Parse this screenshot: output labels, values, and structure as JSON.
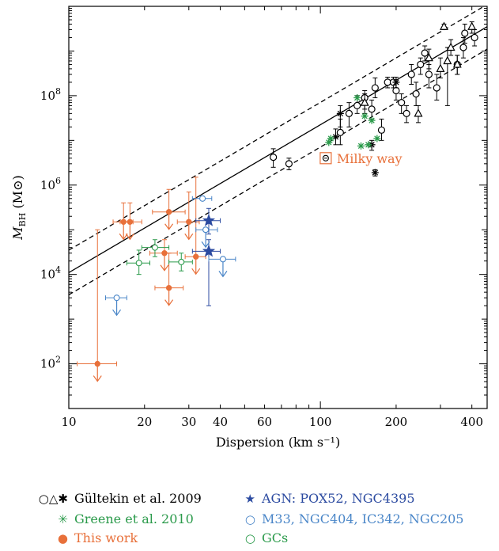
{
  "chart_data": {
    "type": "scatter",
    "xlabel": "Dispersion (km s⁻¹)",
    "ylabel_main": "M",
    "ylabel_sub": "BH",
    "ylabel_unit": "(M⊙)",
    "x_scale": "log",
    "y_scale": "log",
    "xlim": [
      10,
      460
    ],
    "ylim": [
      10,
      10000000000
    ],
    "x_ticks": [
      {
        "value": 10,
        "label": "10"
      },
      {
        "value": 20,
        "label": "20"
      },
      {
        "value": 30,
        "label": "30"
      },
      {
        "value": 40,
        "label": "40"
      },
      {
        "value": 60,
        "label": "60"
      },
      {
        "value": 100,
        "label": "100"
      },
      {
        "value": 200,
        "label": "200"
      },
      {
        "value": 400,
        "label": "400"
      }
    ],
    "y_ticks": [
      {
        "value": 100,
        "base": "10",
        "exp": "2"
      },
      {
        "value": 10000,
        "base": "10",
        "exp": "4"
      },
      {
        "value": 1000000,
        "base": "10",
        "exp": "6"
      },
      {
        "value": 100000000,
        "base": "10",
        "exp": "8"
      }
    ],
    "fit_lines": [
      {
        "style": "solid",
        "points": [
          [
            10,
            11000
          ],
          [
            460,
            3500000000
          ]
        ]
      },
      {
        "style": "dashed",
        "points": [
          [
            10,
            35000
          ],
          [
            460,
            11000000000
          ]
        ]
      },
      {
        "style": "dashed",
        "points": [
          [
            10,
            3500
          ],
          [
            460,
            1100000000
          ]
        ]
      }
    ],
    "annotation": {
      "text": "Milky way",
      "x": 105,
      "y": 4000000,
      "color": "#e8703a"
    },
    "series": [
      {
        "name": "Gültekin et al. 2009",
        "color": "#000000",
        "marker": "circle-open",
        "points": [
          {
            "x": 65,
            "y": 4200000,
            "ylo": 2500000,
            "yhi": 6500000
          },
          {
            "x": 75,
            "y": 3000000,
            "ylo": 2200000,
            "yhi": 4000000
          },
          {
            "x": 120,
            "y": 15000000,
            "ylo": 8000000,
            "yhi": 30000000
          },
          {
            "x": 130,
            "y": 40000000,
            "ylo": 20000000,
            "yhi": 70000000
          },
          {
            "x": 140,
            "y": 60000000,
            "ylo": 40000000,
            "yhi": 100000000
          },
          {
            "x": 150,
            "y": 90000000,
            "ylo": 50000000,
            "yhi": 130000000
          },
          {
            "x": 160,
            "y": 50000000,
            "ylo": 30000000,
            "yhi": 80000000
          },
          {
            "x": 165,
            "y": 150000000,
            "ylo": 90000000,
            "yhi": 250000000
          },
          {
            "x": 175,
            "y": 17000000,
            "ylo": 10000000,
            "yhi": 30000000
          },
          {
            "x": 185,
            "y": 200000000,
            "ylo": 150000000,
            "yhi": 260000000
          },
          {
            "x": 195,
            "y": 200000000,
            "ylo": 150000000,
            "yhi": 260000000
          },
          {
            "x": 200,
            "y": 130000000,
            "ylo": 80000000,
            "yhi": 200000000
          },
          {
            "x": 210,
            "y": 70000000,
            "ylo": 40000000,
            "yhi": 110000000
          },
          {
            "x": 220,
            "y": 40000000,
            "ylo": 25000000,
            "yhi": 60000000
          },
          {
            "x": 230,
            "y": 300000000,
            "ylo": 180000000,
            "yhi": 500000000
          },
          {
            "x": 240,
            "y": 110000000,
            "ylo": 60000000,
            "yhi": 200000000
          },
          {
            "x": 250,
            "y": 500000000,
            "ylo": 300000000,
            "yhi": 700000000
          },
          {
            "x": 260,
            "y": 900000000,
            "ylo": 600000000,
            "yhi": 1300000000
          },
          {
            "x": 270,
            "y": 300000000,
            "ylo": 150000000,
            "yhi": 500000000
          },
          {
            "x": 290,
            "y": 150000000,
            "ylo": 80000000,
            "yhi": 300000000
          },
          {
            "x": 350,
            "y": 500000000,
            "ylo": 300000000,
            "yhi": 800000000
          },
          {
            "x": 370,
            "y": 1200000000,
            "ylo": 700000000,
            "yhi": 2000000000
          },
          {
            "x": 375,
            "y": 2500000000,
            "ylo": 1500000000,
            "yhi": 4000000000
          },
          {
            "x": 410,
            "y": 2000000000,
            "ylo": 1300000000,
            "yhi": 3000000000
          }
        ]
      },
      {
        "name": "Gültekin et al. 2009 (triangles)",
        "color": "#000000",
        "marker": "triangle-open",
        "points": [
          {
            "x": 150,
            "y": 70000000,
            "ylo": 40000000,
            "yhi": 110000000
          },
          {
            "x": 245,
            "y": 40000000,
            "ylo": 25000000,
            "yhi": 60000000
          },
          {
            "x": 270,
            "y": 700000000,
            "ylo": 400000000,
            "yhi": 1100000000
          },
          {
            "x": 300,
            "y": 400000000,
            "ylo": 250000000,
            "yhi": 700000000
          },
          {
            "x": 310,
            "y": 3500000000,
            "ylo": 3000000000,
            "yhi": 4000000000
          },
          {
            "x": 320,
            "y": 600000000,
            "ylo": 60000000,
            "yhi": 1200000000
          },
          {
            "x": 330,
            "y": 1200000000,
            "ylo": 800000000,
            "yhi": 1800000000
          },
          {
            "x": 350,
            "y": 500000000,
            "ylo": 300000000,
            "yhi": 800000000
          },
          {
            "x": 400,
            "y": 3500000000,
            "ylo": 2500000000,
            "yhi": 4500000000
          }
        ]
      },
      {
        "name": "Gültekin et al. 2009 (stars)",
        "color": "#000000",
        "marker": "asterisk",
        "points": [
          {
            "x": 115,
            "y": 12000000,
            "ylo": 8000000,
            "yhi": 18000000
          },
          {
            "x": 120,
            "y": 40000000,
            "ylo": 20000000,
            "yhi": 60000000
          },
          {
            "x": 160,
            "y": 8000000,
            "ylo": 6000000,
            "yhi": 10000000
          },
          {
            "x": 165,
            "y": 1900000,
            "ylo": 1600000,
            "yhi": 2200000
          },
          {
            "x": 200,
            "y": 200000000,
            "ylo": 150000000,
            "yhi": 260000000
          }
        ]
      },
      {
        "name": "Greene et al. 2010",
        "color": "#2a9a4a",
        "marker": "asterisk",
        "points": [
          {
            "x": 108,
            "y": 9000000
          },
          {
            "x": 110,
            "y": 11000000
          },
          {
            "x": 145,
            "y": 7500000
          },
          {
            "x": 150,
            "y": 35000000
          },
          {
            "x": 155,
            "y": 8000000
          },
          {
            "x": 160,
            "y": 28000000
          },
          {
            "x": 168,
            "y": 11000000
          },
          {
            "x": 140,
            "y": 90000000
          }
        ]
      },
      {
        "name": "This work",
        "color": "#e8703a",
        "marker": "dot",
        "points": [
          {
            "x": 13,
            "y": 100,
            "xlo": 10.8,
            "xhi": 15.5,
            "yhi": 100000,
            "upper_limit": true
          },
          {
            "x": 16.5,
            "y": 150000,
            "xlo": 15,
            "xhi": 18,
            "yhi": 400000,
            "upper_limit": true
          },
          {
            "x": 17.5,
            "y": 150000,
            "xlo": 16,
            "xhi": 19.5,
            "yhi": 400000,
            "upper_limit": true
          },
          {
            "x": 24,
            "y": 30000,
            "xlo": 21,
            "xhi": 27,
            "yhi": 60000,
            "upper_limit": true
          },
          {
            "x": 25,
            "y": 250000,
            "xlo": 21.5,
            "xhi": 29,
            "yhi": 800000,
            "upper_limit": true
          },
          {
            "x": 25,
            "y": 5000,
            "xlo": 22,
            "xhi": 28.5,
            "yhi": 30000,
            "upper_limit": true
          },
          {
            "x": 30,
            "y": 150000,
            "xlo": 27,
            "xhi": 33,
            "yhi": 700000,
            "upper_limit": true
          },
          {
            "x": 32,
            "y": 25000,
            "xlo": 29,
            "xhi": 35,
            "yhi": 1500000,
            "upper_limit": true
          }
        ]
      },
      {
        "name": "AGN: POX52, NGC4395",
        "color": "#2b4aa0",
        "marker": "star",
        "points": [
          {
            "x": 36,
            "y": 160000,
            "xlo": 32,
            "xhi": 40,
            "ylo": 80000,
            "yhi": 300000
          },
          {
            "x": 36,
            "y": 33000,
            "xlo": 31,
            "xhi": 40,
            "ylo": 2000,
            "yhi": 60000
          }
        ]
      },
      {
        "name": "M33, NGC404, IC342, NGC205",
        "color": "#4a86c8",
        "marker": "circle-small",
        "points": [
          {
            "x": 15.5,
            "y": 3000,
            "xlo": 14,
            "xhi": 17,
            "upper_limit": true
          },
          {
            "x": 34,
            "y": 500000,
            "xlo": 31,
            "xhi": 37
          },
          {
            "x": 35,
            "y": 100000,
            "xlo": 32,
            "xhi": 39,
            "upper_limit": true
          },
          {
            "x": 41,
            "y": 22000,
            "xlo": 36,
            "xhi": 46,
            "upper_limit": true
          }
        ]
      },
      {
        "name": "GCs",
        "color": "#2a9a4a",
        "marker": "circle-small",
        "points": [
          {
            "x": 19,
            "y": 18000,
            "xlo": 17,
            "xhi": 21,
            "ylo": 10000,
            "yhi": 35000
          },
          {
            "x": 22,
            "y": 40000,
            "xlo": 19.5,
            "xhi": 25,
            "ylo": 25000,
            "yhi": 60000
          },
          {
            "x": 28,
            "y": 19000,
            "xlo": 25,
            "xhi": 31,
            "ylo": 12000,
            "yhi": 30000
          }
        ]
      }
    ],
    "legend": [
      {
        "symbol": "○△✱",
        "label": "Gültekin et al. 2009",
        "color": "#000000",
        "label_color": "#000000"
      },
      {
        "symbol": "✳",
        "label": "Greene et al. 2010",
        "color": "#2a9a4a",
        "label_color": "#2a9a4a"
      },
      {
        "symbol": "●",
        "label": "This work",
        "color": "#e8703a",
        "label_color": "#e8703a"
      },
      {
        "symbol": "★",
        "label": "AGN: POX52, NGC4395",
        "color": "#2b4aa0",
        "label_color": "#2b4aa0"
      },
      {
        "symbol": "○",
        "label": "M33, NGC404, IC342, NGC205",
        "color": "#4a86c8",
        "label_color": "#4a86c8"
      },
      {
        "symbol": "○",
        "label": "GCs",
        "color": "#2a9a4a",
        "label_color": "#2a9a4a"
      }
    ]
  }
}
